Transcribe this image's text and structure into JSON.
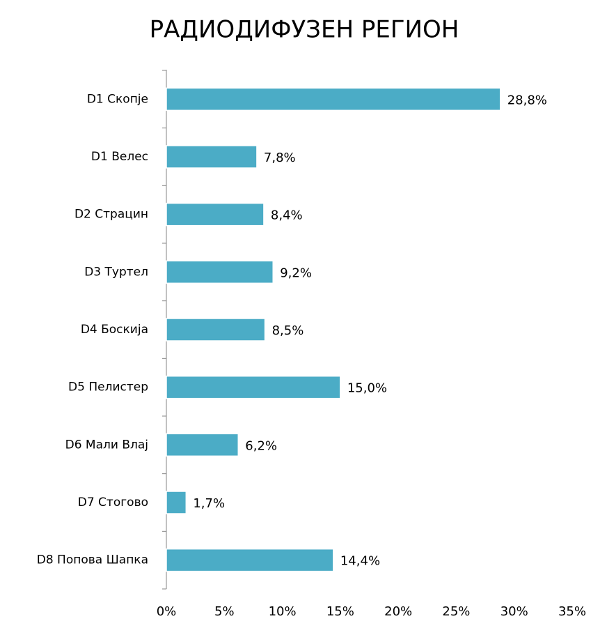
{
  "chart_data": {
    "type": "bar",
    "orientation": "horizontal",
    "title": "РАДИОДИФУЗЕН РЕГИОН",
    "categories": [
      "D1 Скопје",
      "D1 Велес",
      "D2 Страцин",
      "D3 Туртел",
      "D4 Боскија",
      "D5 Пелистер",
      "D6 Мали Влај",
      "D7 Стогово",
      "D8 Попова Шапка"
    ],
    "values": [
      28.8,
      7.8,
      8.4,
      9.2,
      8.5,
      15.0,
      6.2,
      1.7,
      14.4
    ],
    "value_labels": [
      "28,8%",
      "7,8%",
      "8,4%",
      "9,2%",
      "8,5%",
      "15,0%",
      "6,2%",
      "1,7%",
      "14,4%"
    ],
    "color": "#4bacc6",
    "xlim": [
      0,
      35
    ],
    "xticks": [
      {
        "value": 0,
        "label": "0%"
      },
      {
        "value": 5,
        "label": "5%"
      },
      {
        "value": 10,
        "label": "10%"
      },
      {
        "value": 15,
        "label": "15%"
      },
      {
        "value": 20,
        "label": "20%"
      },
      {
        "value": 25,
        "label": "25%"
      },
      {
        "value": 30,
        "label": "30%"
      },
      {
        "value": 35,
        "label": "35%"
      }
    ],
    "grid": false
  }
}
